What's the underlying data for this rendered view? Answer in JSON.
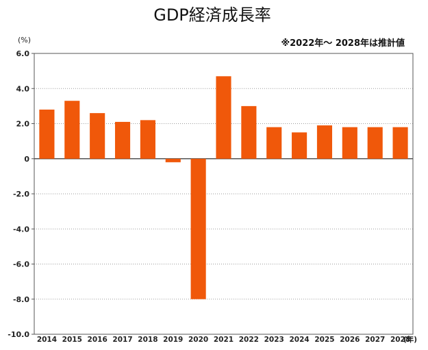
{
  "chart_data": {
    "type": "bar",
    "title": "GDP経済成長率",
    "note": "※2022年～ 2028年は推計値",
    "y_unit": "(%)",
    "x_unit": "(年)",
    "categories": [
      "2014",
      "2015",
      "2016",
      "2017",
      "2018",
      "2019",
      "2020",
      "2021",
      "2022",
      "2023",
      "2024",
      "2025",
      "2026",
      "2027",
      "2028"
    ],
    "values": [
      2.8,
      3.3,
      2.6,
      2.1,
      2.2,
      -0.2,
      -8.0,
      4.7,
      3.0,
      1.8,
      1.5,
      1.9,
      1.8,
      1.8,
      1.8
    ],
    "ylim": [
      -10.0,
      6.0
    ],
    "yticks": [
      6.0,
      4.0,
      2.0,
      0,
      -2.0,
      -4.0,
      -6.0,
      -8.0,
      -10.0
    ],
    "ytick_labels": [
      "6.0",
      "4.0",
      "2.0",
      "0",
      "-2.0",
      "-4.0",
      "-6.0",
      "-8.0",
      "-10.0"
    ],
    "grid": "horizontal dotted",
    "bar_color": "#f0580a"
  }
}
